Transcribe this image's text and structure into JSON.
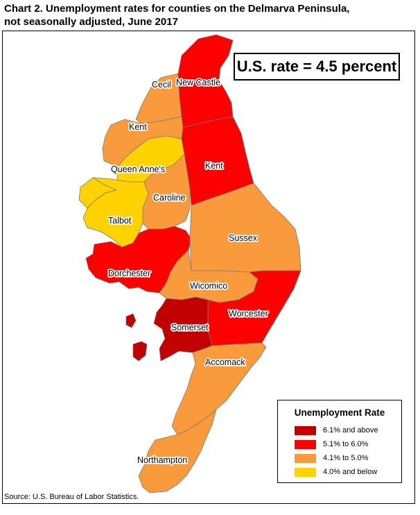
{
  "title": {
    "line1": "Chart 2. Unemployment rates for counties on the Delmarva Peninsula,",
    "line2": "not seasonally adjusted, June 2017"
  },
  "us_rate": "U.S. rate = 4.5 percent",
  "legend": {
    "title": "Unemployment Rate",
    "items": [
      {
        "label": "6.1% and above",
        "color": "#c20000"
      },
      {
        "label": "5.1% to 6.0%",
        "color": "#ff0000"
      },
      {
        "label": "4.1% to 5.0%",
        "color": "#f99a3c"
      },
      {
        "label": "4.0% and below",
        "color": "#ffd200"
      }
    ]
  },
  "counties": {
    "new_castle": {
      "name": "New Castle",
      "category": "5.1% to 6.0%"
    },
    "kent_de": {
      "name": "Kent",
      "category": "5.1% to 6.0%"
    },
    "sussex": {
      "name": "Sussex",
      "category": "4.1% to 5.0%"
    },
    "cecil": {
      "name": "Cecil",
      "category": "4.1% to 5.0%"
    },
    "kent_md": {
      "name": "Kent",
      "category": "4.1% to 5.0%"
    },
    "queen_annes": {
      "name": "Queen Anne's",
      "category": "4.0% and below"
    },
    "caroline": {
      "name": "Caroline",
      "category": "4.1% to 5.0%"
    },
    "talbot": {
      "name": "Talbot",
      "category": "4.0% and below"
    },
    "dorchester": {
      "name": "Dorchester",
      "category": "5.1% to 6.0%"
    },
    "wicomico": {
      "name": "Wicomico",
      "category": "4.1% to 5.0%"
    },
    "worcester": {
      "name": "Worcester",
      "category": "5.1% to 6.0%"
    },
    "somerset": {
      "name": "Somerset",
      "category": "6.1% and above"
    },
    "accomack": {
      "name": "Accomack",
      "category": "4.1% to 5.0%"
    },
    "northampton": {
      "name": "Northampton",
      "category": "4.1% to 5.0%"
    }
  },
  "source": "Source: U.S. Bureau of Labor Statistics."
}
